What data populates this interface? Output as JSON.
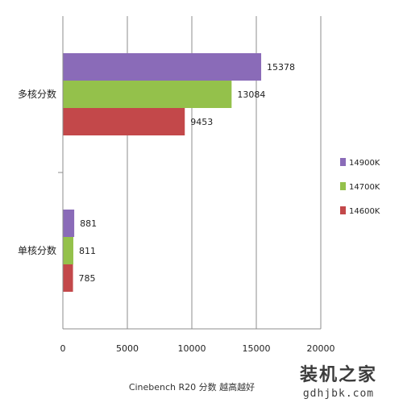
{
  "chart_data": {
    "type": "bar",
    "orientation": "horizontal",
    "xlabel": "Cinebench R20 分数 越高越好",
    "xlim": [
      0,
      20000
    ],
    "xticks": [
      0,
      5000,
      10000,
      15000,
      20000
    ],
    "categories": [
      "多核分数",
      "单核分数"
    ],
    "series": [
      {
        "name": "14900K",
        "color": "#8a6bb8",
        "values": [
          15378,
          881
        ]
      },
      {
        "name": "14700K",
        "color": "#94c14b",
        "values": [
          13084,
          811
        ]
      },
      {
        "name": "14600K",
        "color": "#c3484a",
        "values": [
          9453,
          785
        ]
      }
    ],
    "grid": true,
    "legend_position": "right"
  },
  "watermark": {
    "text": "装机之家",
    "url": "gdhjbk.com"
  }
}
